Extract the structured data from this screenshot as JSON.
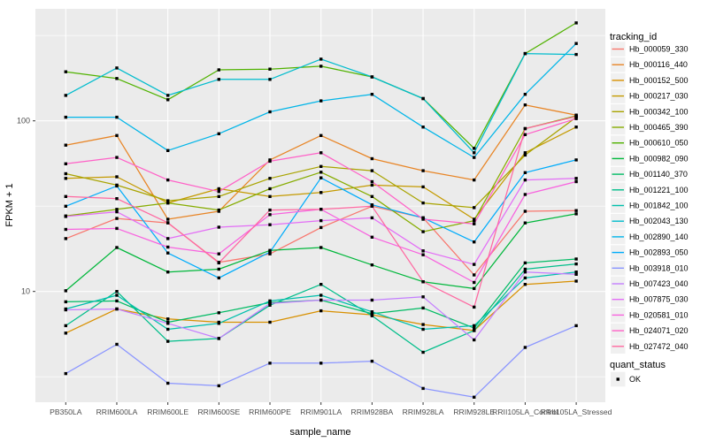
{
  "figure": {
    "y_axis_title": "FPKM + 1",
    "x_axis_title": "sample_name",
    "legend": {
      "tracking_title": "tracking_id",
      "quant_title": "quant_status",
      "quant_items": [
        {
          "label": "OK",
          "marker": "black-square-point"
        }
      ]
    },
    "colors": {
      "panel_bg": "#EBEBEB",
      "grid": "#FFFFFF",
      "tick_text": "#4D4D4D",
      "axis_text": "#000000",
      "point_marker": "#000000",
      "legend_key_bg": "#F0F0F0"
    }
  },
  "chart_data": {
    "type": "line",
    "title": "",
    "xlabel": "sample_name",
    "ylabel": "FPKM + 1",
    "y_scale": "log10",
    "ylim": [
      2.2,
      455
    ],
    "y_ticks": [
      10,
      100
    ],
    "y_minor_ticks": [
      3.162,
      31.62,
      316.2
    ],
    "grid": true,
    "legend_position": "right",
    "point_marker": "black-square",
    "quant_status_legend": "OK",
    "categories": [
      "PB350LA",
      "RRIM600LA",
      "RRIM600LE",
      "RRIM600SE",
      "RRIM600PE",
      "RRIM901LA",
      "RRIM928BA",
      "RRIM928LA",
      "RRIM928LE",
      "RRII105LA_Control",
      "RRII105LA_Stressed"
    ],
    "series": [
      {
        "name": "Hb_000059_330",
        "color": "#F8766D",
        "values": [
          20.4,
          26.8,
          25.2,
          14.8,
          16.6,
          23.7,
          31.6,
          27.0,
          12.5,
          29.5,
          29.8
        ]
      },
      {
        "name": "Hb_000116_440",
        "color": "#E88526",
        "values": [
          72,
          82,
          26.5,
          29.5,
          59,
          82,
          60,
          51,
          45,
          124,
          108
        ]
      },
      {
        "name": "Hb_000152_500",
        "color": "#D89000",
        "values": [
          5.7,
          7.9,
          6.9,
          6.6,
          6.6,
          7.7,
          7.3,
          6.4,
          5.9,
          11.0,
          11.5
        ]
      },
      {
        "name": "Hb_000217_030",
        "color": "#C49A00",
        "values": [
          46,
          47,
          33,
          40,
          36,
          38,
          42,
          41,
          26.5,
          65,
          92
        ]
      },
      {
        "name": "Hb_000342_100",
        "color": "#A9A400",
        "values": [
          49,
          42,
          34,
          36,
          46,
          54,
          51,
          33,
          31,
          63,
          105
        ]
      },
      {
        "name": "Hb_000465_390",
        "color": "#86AC00",
        "values": [
          27.7,
          30.3,
          33,
          30,
          40,
          50,
          36,
          22.4,
          26,
          90,
          107
        ]
      },
      {
        "name": "Hb_000610_050",
        "color": "#50B200",
        "values": [
          194,
          177,
          133,
          199,
          201,
          209,
          181,
          135,
          69,
          248,
          375
        ]
      },
      {
        "name": "Hb_000982_090",
        "color": "#00B73B",
        "values": [
          10.1,
          18.1,
          13.0,
          13.5,
          17.4,
          18.1,
          14.3,
          11.4,
          10.4,
          25.2,
          28.5
        ]
      },
      {
        "name": "Hb_001140_370",
        "color": "#00BB64",
        "values": [
          8.7,
          8.8,
          6.6,
          7.5,
          8.6,
          8.9,
          7.4,
          8.0,
          6.1,
          14.7,
          15.5
        ]
      },
      {
        "name": "Hb_001221_100",
        "color": "#00BE8A",
        "values": [
          6.3,
          10.0,
          5.1,
          5.3,
          8.3,
          11.0,
          7.2,
          4.4,
          5.9,
          13.5,
          14.5
        ]
      },
      {
        "name": "Hb_001842_100",
        "color": "#00BFAC",
        "values": [
          7.9,
          9.5,
          6.0,
          6.5,
          8.8,
          9.5,
          7.6,
          6.0,
          6.3,
          12.0,
          13.0
        ]
      },
      {
        "name": "Hb_002043_130",
        "color": "#00BCCD",
        "values": [
          141,
          204,
          141,
          175,
          175,
          230,
          181,
          135,
          65,
          248,
          245
        ]
      },
      {
        "name": "Hb_002890_140",
        "color": "#00B5E8",
        "values": [
          105,
          105,
          67,
          84,
          113,
          131,
          143,
          92,
          61,
          143,
          284
        ]
      },
      {
        "name": "Hb_002893_050",
        "color": "#00ACFB",
        "values": [
          31.6,
          41.5,
          16.8,
          12.0,
          17.0,
          46.3,
          32.2,
          27.0,
          19.5,
          49.7,
          59
        ]
      },
      {
        "name": "Hb_003918_010",
        "color": "#8A95FF",
        "values": [
          3.3,
          4.9,
          2.9,
          2.8,
          3.8,
          3.8,
          3.9,
          2.7,
          2.4,
          4.7,
          6.3
        ]
      },
      {
        "name": "Hb_007423_040",
        "color": "#C47EFF",
        "values": [
          7.8,
          7.9,
          6.5,
          5.3,
          8.5,
          8.9,
          8.9,
          9.3,
          5.2,
          13.0,
          12.6
        ]
      },
      {
        "name": "Hb_007875_030",
        "color": "#E36EF6",
        "values": [
          27.5,
          29.3,
          20.4,
          23.8,
          24.6,
          26.0,
          27.0,
          17.3,
          14.4,
          45,
          46
        ]
      },
      {
        "name": "Hb_020581_010",
        "color": "#F863DF",
        "values": [
          23.1,
          23.4,
          18.2,
          16.6,
          28.2,
          30.3,
          20.8,
          16.4,
          11.3,
          37,
          44
        ]
      },
      {
        "name": "Hb_024071_020",
        "color": "#FF61C7",
        "values": [
          56,
          61,
          45,
          38.5,
          58,
          65,
          44,
          26.5,
          24.9,
          83,
          103
        ]
      },
      {
        "name": "Hb_027472_040",
        "color": "#FF68A1",
        "values": [
          36,
          35,
          25.3,
          14.7,
          30,
          30.3,
          31.6,
          11.4,
          8.1,
          90,
          106
        ]
      }
    ]
  }
}
